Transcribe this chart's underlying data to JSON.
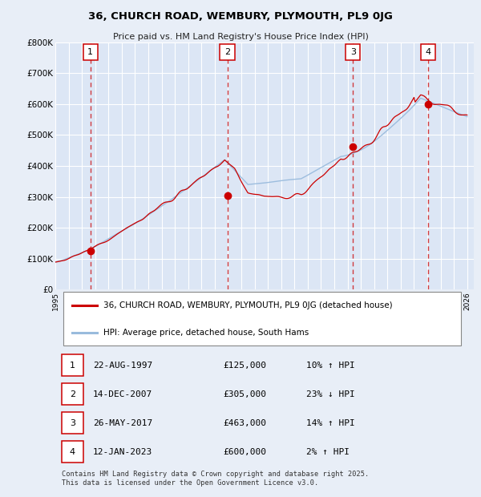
{
  "title": "36, CHURCH ROAD, WEMBURY, PLYMOUTH, PL9 0JG",
  "subtitle": "Price paid vs. HM Land Registry's House Price Index (HPI)",
  "ylim": [
    0,
    800000
  ],
  "yticks": [
    0,
    100000,
    200000,
    300000,
    400000,
    500000,
    600000,
    700000,
    800000
  ],
  "ytick_labels": [
    "£0",
    "£100K",
    "£200K",
    "£300K",
    "£400K",
    "£500K",
    "£600K",
    "£700K",
    "£800K"
  ],
  "xlim": [
    1995.0,
    2026.5
  ],
  "background_color": "#e8eef7",
  "plot_bg_color": "#dce6f5",
  "grid_color": "#ffffff",
  "red_line_color": "#cc0000",
  "blue_line_color": "#99bbdd",
  "sale_marker_color": "#cc0000",
  "sale_box_color": "#cc0000",
  "sales": [
    {
      "num": 1,
      "year": 1997.64,
      "price": 125000,
      "label": "1"
    },
    {
      "num": 2,
      "year": 2007.95,
      "price": 305000,
      "label": "2"
    },
    {
      "num": 3,
      "year": 2017.4,
      "price": 463000,
      "label": "3"
    },
    {
      "num": 4,
      "year": 2023.04,
      "price": 600000,
      "label": "4"
    }
  ],
  "legend_line1": "36, CHURCH ROAD, WEMBURY, PLYMOUTH, PL9 0JG (detached house)",
  "legend_line2": "HPI: Average price, detached house, South Hams",
  "table": [
    {
      "num": "1",
      "date": "22-AUG-1997",
      "price": "£125,000",
      "hpi": "10% ↑ HPI"
    },
    {
      "num": "2",
      "date": "14-DEC-2007",
      "price": "£305,000",
      "hpi": "23% ↓ HPI"
    },
    {
      "num": "3",
      "date": "26-MAY-2017",
      "price": "£463,000",
      "hpi": "14% ↑ HPI"
    },
    {
      "num": "4",
      "date": "12-JAN-2023",
      "price": "£600,000",
      "hpi": "2% ↑ HPI"
    }
  ],
  "footnote": "Contains HM Land Registry data © Crown copyright and database right 2025.\nThis data is licensed under the Open Government Licence v3.0."
}
